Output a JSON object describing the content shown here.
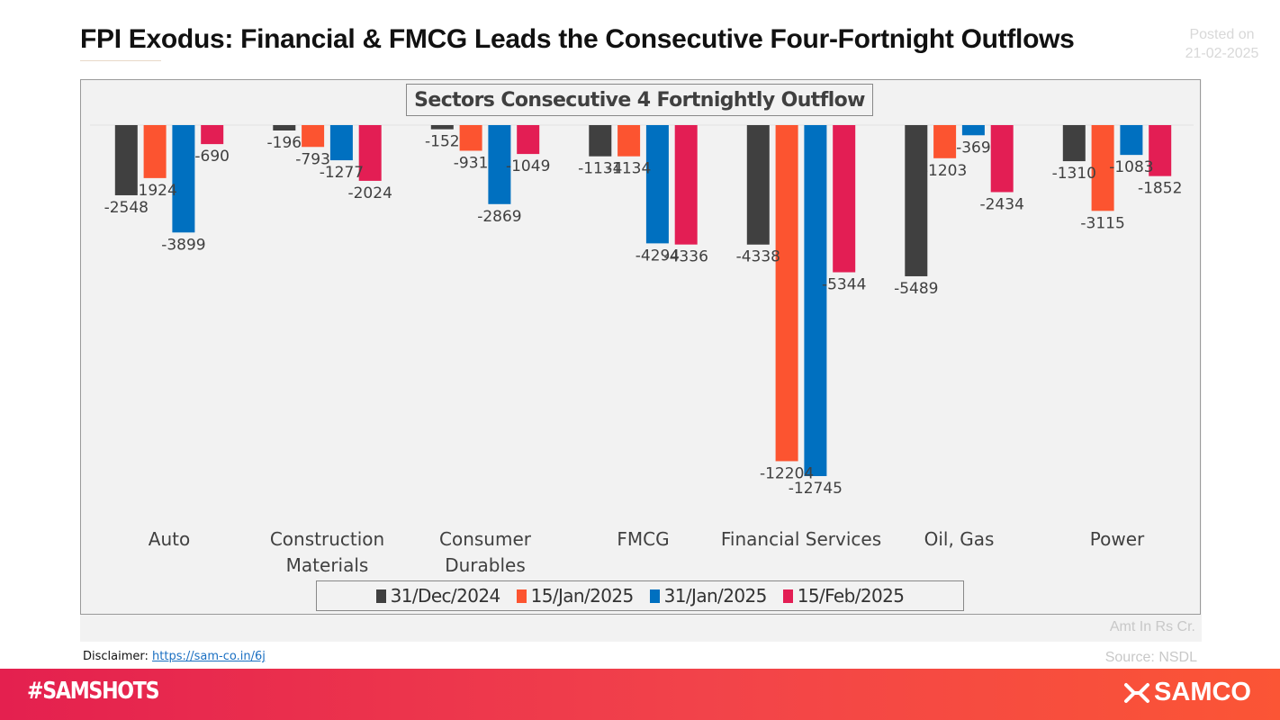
{
  "header": {
    "title": "FPI Exodus: Financial & FMCG Leads the Consecutive Four-Fortnight Outflows",
    "posted_label": "Posted on",
    "posted_date": "21-02-2025"
  },
  "chart_data": {
    "type": "bar",
    "title": "Sectors Consecutive 4 Fortnightly Outflow",
    "categories": [
      [
        "Auto"
      ],
      [
        "Construction",
        "Materials"
      ],
      [
        "Consumer",
        "Durables"
      ],
      [
        "FMCG"
      ],
      [
        "Financial Services"
      ],
      [
        "Oil, Gas"
      ],
      [
        "Power"
      ]
    ],
    "series": [
      {
        "name": "31/Dec/2024",
        "color": "#404040",
        "values": [
          -2548,
          -196,
          -152,
          -1134,
          -4338,
          -5489,
          -1310
        ]
      },
      {
        "name": "15/Jan/2025",
        "color": "#fc5430",
        "values": [
          -1924,
          -793,
          -931,
          -1134,
          -12204,
          -1203,
          -3115
        ]
      },
      {
        "name": "31/Jan/2025",
        "color": "#0070c0",
        "values": [
          -3899,
          -1277,
          -2869,
          -4294,
          -12745,
          -369,
          -1083
        ]
      },
      {
        "name": "15/Feb/2025",
        "color": "#e31e54",
        "values": [
          -690,
          -2024,
          -1049,
          -4336,
          -5344,
          -2434,
          -1852
        ]
      }
    ],
    "xlabel": "",
    "ylabel": "",
    "ylim": [
      -12745,
      0
    ],
    "grid": false,
    "legend_position": "bottom",
    "unit_note": "Amt In Rs Cr."
  },
  "footer_notes": {
    "amount_unit": "Amt In Rs Cr.",
    "disclaimer_label": "Disclaimer:",
    "disclaimer_link": "https://sam-co.in/6j",
    "source": "Source: NSDL"
  },
  "banner": {
    "hashtag": "#SAMSHOTS",
    "brand": "SAMCO"
  }
}
